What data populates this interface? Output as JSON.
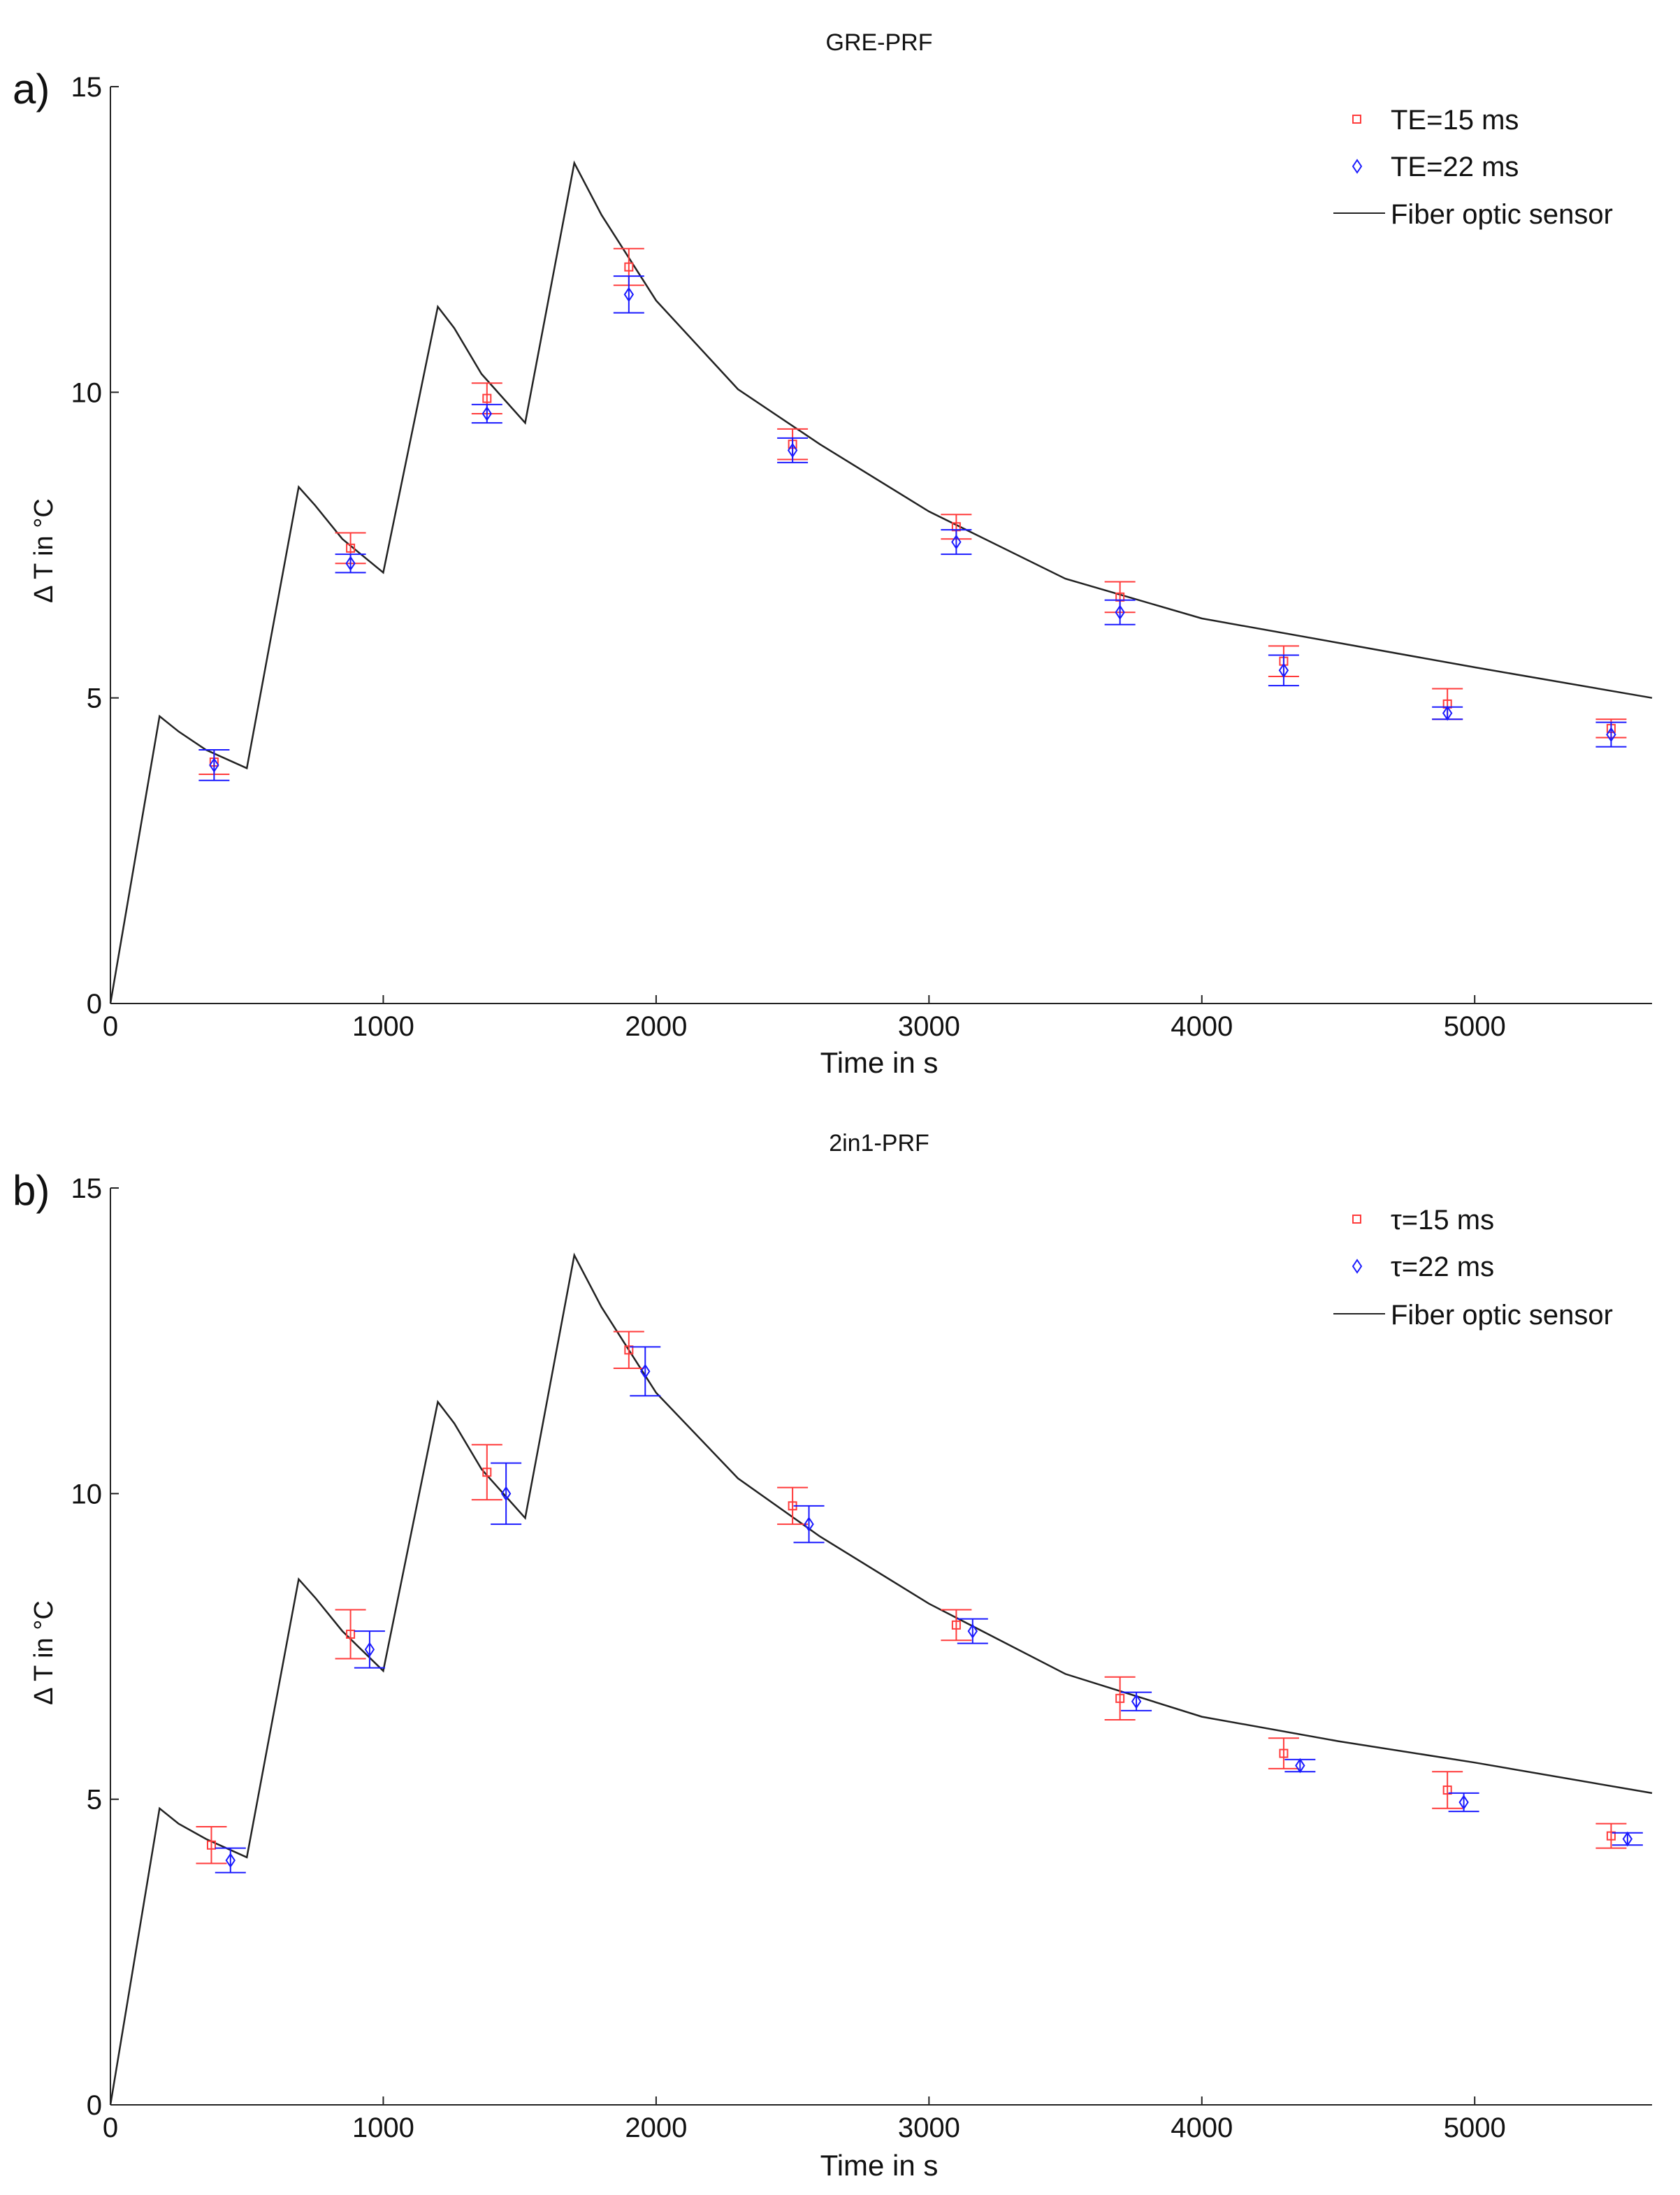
{
  "chart_data": [
    {
      "panel_label": "a)",
      "type": "scatter",
      "title": "GRE-PRF",
      "xlabel": "Time in s",
      "ylabel": "Δ T in °C",
      "xlim": [
        0,
        5650
      ],
      "ylim": [
        0,
        15
      ],
      "xticks": [
        0,
        1000,
        2000,
        3000,
        4000,
        5000
      ],
      "yticks": [
        0,
        5,
        10,
        15
      ],
      "grid": false,
      "legend_position": "top-right",
      "colors": {
        "series1": "#ff3b3b",
        "series2": "#1a1aff",
        "line": "#222222"
      },
      "legend": {
        "series1": "TE=15 ms",
        "series2": "TE=22 ms",
        "line": "Fiber optic sensor"
      },
      "series": [
        {
          "name": "TE=15 ms",
          "marker": "square",
          "x": [
            380,
            880,
            1380,
            1900,
            2500,
            3100,
            3700,
            4300,
            4900,
            5500
          ],
          "y": [
            3.95,
            7.45,
            9.9,
            12.05,
            9.15,
            7.8,
            6.65,
            5.6,
            4.9,
            4.5
          ],
          "err": [
            0.2,
            0.25,
            0.25,
            0.3,
            0.25,
            0.2,
            0.25,
            0.25,
            0.25,
            0.15
          ]
        },
        {
          "name": "TE=22 ms",
          "marker": "diamond",
          "x": [
            380,
            880,
            1380,
            1900,
            2500,
            3100,
            3700,
            4300,
            4900,
            5500
          ],
          "y": [
            3.9,
            7.2,
            9.65,
            11.6,
            9.05,
            7.55,
            6.4,
            5.45,
            4.75,
            4.4
          ],
          "err": [
            0.25,
            0.15,
            0.15,
            0.3,
            0.2,
            0.2,
            0.2,
            0.25,
            0.1,
            0.2
          ]
        }
      ],
      "sensor": {
        "name": "Fiber optic sensor",
        "x": [
          0,
          180,
          250,
          350,
          500,
          690,
          750,
          850,
          1000,
          1200,
          1260,
          1360,
          1520,
          1700,
          1800,
          2000,
          2300,
          2600,
          3000,
          3500,
          4000,
          4500,
          5000,
          5650
        ],
        "y": [
          0,
          4.7,
          4.45,
          4.15,
          3.85,
          8.45,
          8.15,
          7.6,
          7.05,
          11.4,
          11.05,
          10.3,
          9.5,
          13.75,
          12.9,
          11.5,
          10.05,
          9.15,
          8.05,
          6.95,
          6.3,
          5.9,
          5.5,
          5.0
        ]
      }
    },
    {
      "panel_label": "b)",
      "type": "scatter",
      "title": "2in1-PRF",
      "xlabel": "Time in s",
      "ylabel": "Δ T in °C",
      "xlim": [
        0,
        5650
      ],
      "ylim": [
        0,
        15
      ],
      "xticks": [
        0,
        1000,
        2000,
        3000,
        4000,
        5000
      ],
      "yticks": [
        0,
        5,
        10,
        15
      ],
      "grid": false,
      "legend_position": "top-right",
      "colors": {
        "series1": "#ff3b3b",
        "series2": "#1a1aff",
        "line": "#222222"
      },
      "legend": {
        "series1": "τ=15 ms",
        "series2": "τ=22 ms",
        "line": "Fiber optic sensor"
      },
      "series": [
        {
          "name": "τ=15 ms",
          "marker": "square",
          "x": [
            370,
            880,
            1380,
            1900,
            2500,
            3100,
            3700,
            4300,
            4900,
            5500
          ],
          "y": [
            4.25,
            7.7,
            10.35,
            12.35,
            9.8,
            7.85,
            6.65,
            5.75,
            5.15,
            4.4
          ],
          "err": [
            0.3,
            0.4,
            0.45,
            0.3,
            0.3,
            0.25,
            0.35,
            0.25,
            0.3,
            0.2
          ]
        },
        {
          "name": "τ=22 ms",
          "marker": "diamond",
          "x": [
            440,
            950,
            1450,
            1960,
            2560,
            3160,
            3760,
            4360,
            4960,
            5560
          ],
          "y": [
            4.0,
            7.45,
            10.0,
            12.0,
            9.5,
            7.75,
            6.6,
            5.55,
            4.95,
            4.35
          ],
          "err": [
            0.2,
            0.3,
            0.5,
            0.4,
            0.3,
            0.2,
            0.15,
            0.1,
            0.15,
            0.1
          ]
        }
      ],
      "sensor": {
        "name": "Fiber optic sensor",
        "x": [
          0,
          180,
          250,
          350,
          500,
          690,
          750,
          850,
          1000,
          1200,
          1260,
          1360,
          1520,
          1700,
          1800,
          2000,
          2300,
          2600,
          3000,
          3500,
          4000,
          4500,
          5000,
          5650
        ],
        "y": [
          0,
          4.85,
          4.6,
          4.35,
          4.05,
          8.6,
          8.3,
          7.75,
          7.1,
          11.5,
          11.15,
          10.4,
          9.6,
          13.9,
          13.05,
          11.65,
          10.25,
          9.3,
          8.2,
          7.05,
          6.35,
          5.95,
          5.6,
          5.1
        ]
      }
    }
  ]
}
